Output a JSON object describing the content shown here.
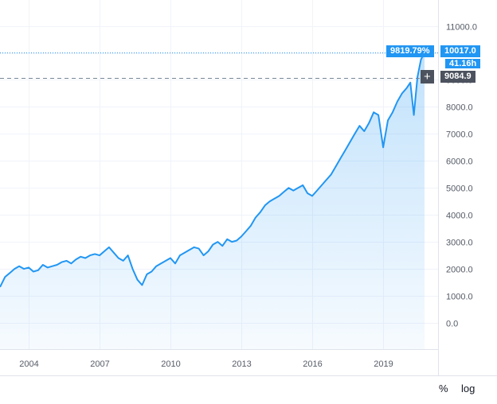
{
  "chart_data": {
    "type": "area",
    "line_color": "#2196f3",
    "fill_color": "#2196f3",
    "x_ticks": [
      "2004",
      "2007",
      "2010",
      "2013",
      "2016",
      "2019"
    ],
    "y_ticks": [
      "11000.0",
      "10000.0",
      "9000.0",
      "8000.0",
      "7000.0",
      "6000.0",
      "5000.0",
      "4000.0",
      "3000.0",
      "2000.0",
      "1000.0",
      "0.0"
    ],
    "ylim": [
      -1000,
      11300
    ],
    "xlim": [
      2001.8,
      2021.9
    ],
    "x": [
      2001.8,
      2002.0,
      2002.2,
      2002.4,
      2002.6,
      2002.8,
      2003.0,
      2003.2,
      2003.4,
      2003.6,
      2003.8,
      2004.0,
      2004.2,
      2004.4,
      2004.6,
      2004.8,
      2005.0,
      2005.2,
      2005.4,
      2005.6,
      2005.8,
      2006.0,
      2006.2,
      2006.4,
      2006.6,
      2006.8,
      2007.0,
      2007.2,
      2007.4,
      2007.6,
      2007.8,
      2008.0,
      2008.2,
      2008.4,
      2008.6,
      2008.8,
      2009.0,
      2009.2,
      2009.4,
      2009.6,
      2009.8,
      2010.0,
      2010.2,
      2010.4,
      2010.6,
      2010.8,
      2011.0,
      2011.2,
      2011.4,
      2011.6,
      2011.8,
      2012.0,
      2012.2,
      2012.4,
      2012.6,
      2012.8,
      2013.0,
      2013.2,
      2013.4,
      2013.6,
      2013.8,
      2014.0,
      2014.2,
      2014.4,
      2014.6,
      2014.8,
      2015.0,
      2015.2,
      2015.4,
      2015.6,
      2015.8,
      2016.0,
      2016.2,
      2016.4,
      2016.6,
      2016.8,
      2017.0,
      2017.2,
      2017.4,
      2017.6,
      2017.8,
      2018.0,
      2018.2,
      2018.4,
      2018.6,
      2018.8,
      2019.0,
      2019.2,
      2019.4,
      2019.6,
      2019.8,
      2020.0,
      2020.15,
      2020.3,
      2020.45,
      2020.6,
      2020.75
    ],
    "values": [
      1500,
      1350,
      1300,
      1550,
      1400,
      1350,
      1700,
      1850,
      2000,
      2100,
      2000,
      2050,
      1900,
      1950,
      2150,
      2050,
      2100,
      2150,
      2250,
      2300,
      2200,
      2350,
      2450,
      2400,
      2500,
      2550,
      2500,
      2650,
      2800,
      2600,
      2400,
      2300,
      2500,
      2000,
      1600,
      1400,
      1800,
      1900,
      2100,
      2200,
      2300,
      2400,
      2200,
      2500,
      2600,
      2700,
      2800,
      2750,
      2500,
      2650,
      2900,
      3000,
      2850,
      3100,
      3000,
      3050,
      3200,
      3400,
      3600,
      3900,
      4100,
      4350,
      4500,
      4600,
      4700,
      4850,
      5000,
      4900,
      5000,
      5100,
      4800,
      4700,
      4900,
      5100,
      5300,
      5500,
      5800,
      6100,
      6400,
      6700,
      7000,
      7300,
      7100,
      7400,
      7800,
      7700,
      6500,
      7500,
      7800,
      8200,
      8500,
      8700,
      8900,
      7700,
      9100,
      9750,
      10017
    ]
  },
  "current_value_label": "10017.0",
  "current_percent_label": "9819.79%",
  "countdown_label": "41.16h",
  "crosshair_value_label": "9084.9",
  "crosshair_value": 9084.9,
  "crosshair_plus": "+",
  "bottom_bar": {
    "percent_label": "%",
    "log_label": "log"
  }
}
